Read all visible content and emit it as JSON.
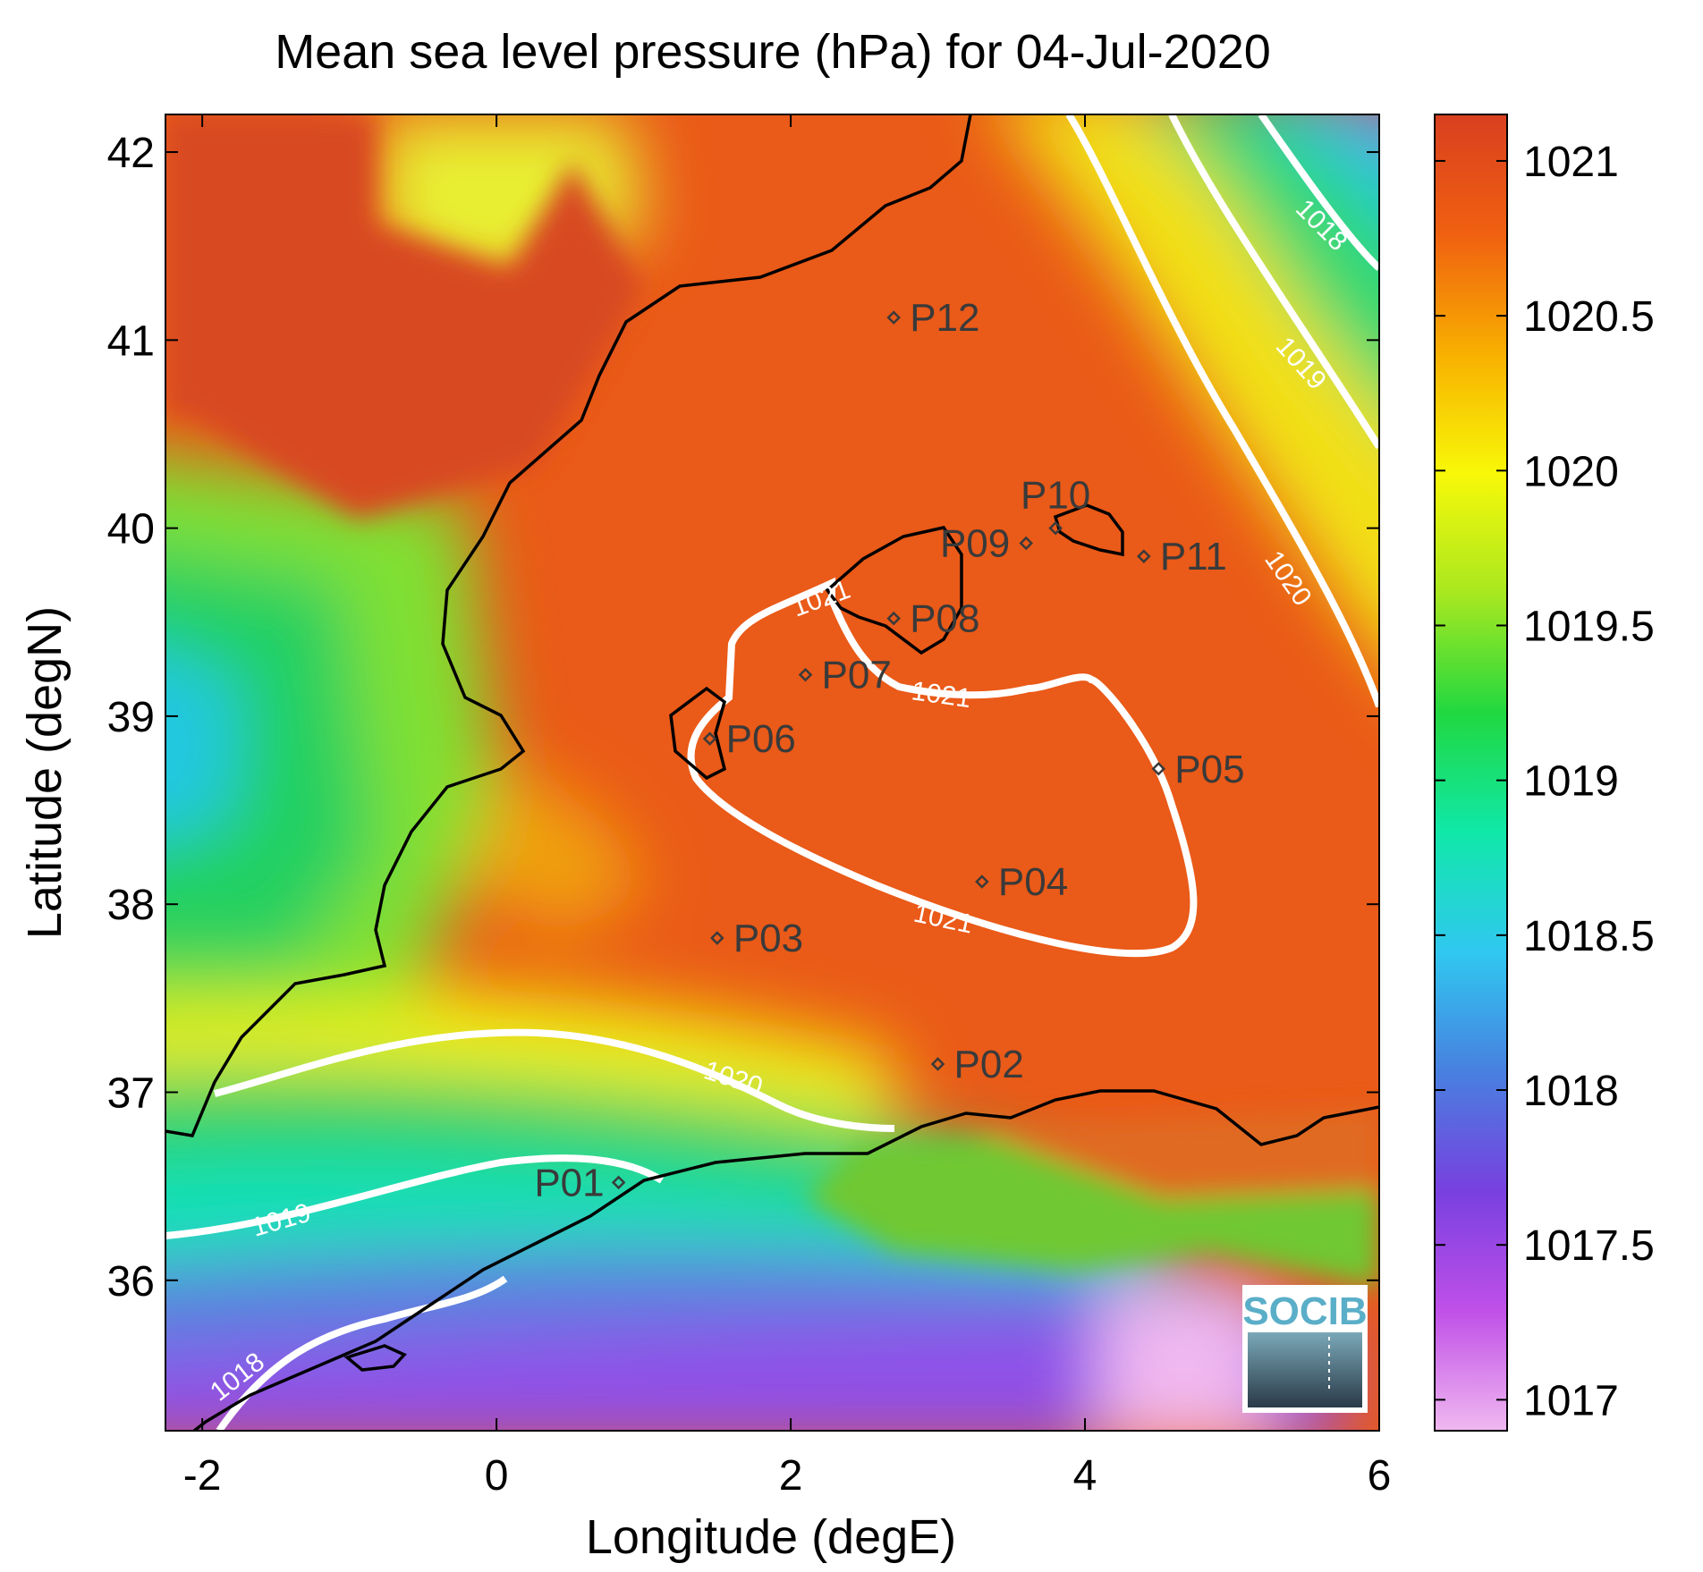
{
  "title": "Mean sea level pressure (hPa) for 04-Jul-2020",
  "map": {
    "xlabel": "Longitude (degE)",
    "ylabel": "Latitude (degN)",
    "xlim": [
      -2.25,
      6.0
    ],
    "ylim": [
      35.2,
      42.2
    ],
    "xticks": [
      -2,
      0,
      2,
      4,
      6
    ],
    "yticks": [
      36,
      37,
      38,
      39,
      40,
      41,
      42
    ]
  },
  "colorbar": {
    "range": [
      1016.9,
      1021.15
    ],
    "ticks": [
      1017,
      1017.5,
      1018,
      1018.5,
      1019,
      1019.5,
      1020,
      1020.5,
      1021
    ],
    "tick_labels": [
      "1017",
      "1017.5",
      "1018",
      "1018.5",
      "1019",
      "1019.5",
      "1020",
      "1020.5",
      "1021"
    ],
    "colormap": [
      "#f0b8f0",
      "#c050e8",
      "#7840e0",
      "#4880e0",
      "#30c8f0",
      "#10e8a8",
      "#20d840",
      "#a8e820",
      "#f8f808",
      "#f8b000",
      "#f06010",
      "#d84020"
    ]
  },
  "contour_labels": [
    "1021",
    "1021",
    "1021",
    "1020",
    "1020",
    "1019",
    "1019",
    "1018",
    "1018"
  ],
  "stations": [
    {
      "id": "P01",
      "lon": 0.83,
      "lat": 36.52
    },
    {
      "id": "P02",
      "lon": 3.0,
      "lat": 37.15
    },
    {
      "id": "P03",
      "lon": 1.5,
      "lat": 37.82
    },
    {
      "id": "P04",
      "lon": 3.3,
      "lat": 38.12
    },
    {
      "id": "P05",
      "lon": 4.5,
      "lat": 38.72
    },
    {
      "id": "P06",
      "lon": 1.45,
      "lat": 38.88
    },
    {
      "id": "P07",
      "lon": 2.1,
      "lat": 39.22
    },
    {
      "id": "P08",
      "lon": 2.7,
      "lat": 39.52
    },
    {
      "id": "P09",
      "lon": 3.6,
      "lat": 39.92
    },
    {
      "id": "P10",
      "lon": 3.8,
      "lat": 40.0
    },
    {
      "id": "P11",
      "lon": 4.4,
      "lat": 39.85
    },
    {
      "id": "P12",
      "lon": 2.7,
      "lat": 41.12
    }
  ],
  "logo": {
    "text": "SOCIB"
  }
}
